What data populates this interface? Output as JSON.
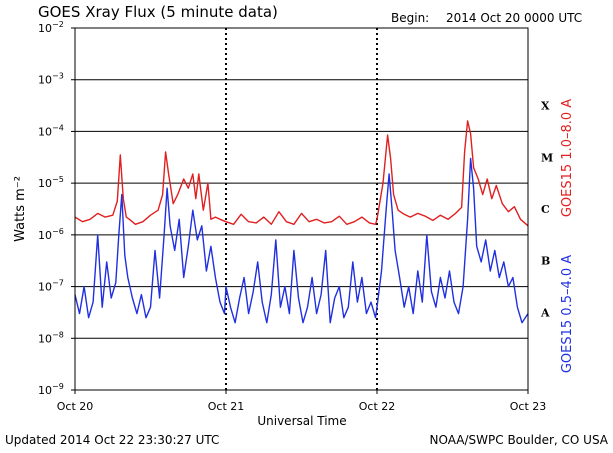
{
  "header": {
    "title": "GOES Xray Flux (5 minute data)",
    "begin_label": "Begin:",
    "begin_value": "2014 Oct 20 0000 UTC"
  },
  "footer": {
    "updated": "Updated 2014 Oct 22 23:30:27 UTC",
    "source": "NOAA/SWPC Boulder, CO USA"
  },
  "colors": {
    "long_channel": "#e02020",
    "short_channel": "#2030e0",
    "grid": "#000000"
  },
  "chart_data": {
    "type": "line",
    "title": "GOES Xray Flux (5 minute data)",
    "xlabel": "Universal Time",
    "ylabel": "Watts m⁻²",
    "yscale": "log",
    "ylim": [
      1e-09,
      0.01
    ],
    "xlim": [
      0,
      3
    ],
    "x_unit": "days since 2014 Oct 20 0000 UTC",
    "x_ticks": [
      {
        "x": 0,
        "label": "Oct 20"
      },
      {
        "x": 1,
        "label": "Oct 21"
      },
      {
        "x": 2,
        "label": "Oct 22"
      },
      {
        "x": 3,
        "label": "Oct 23"
      }
    ],
    "y_ticks": [
      {
        "base": "10",
        "exp": "−2",
        "value": 0.01
      },
      {
        "base": "10",
        "exp": "−3",
        "value": 0.001
      },
      {
        "base": "10",
        "exp": "−4",
        "value": 0.0001
      },
      {
        "base": "10",
        "exp": "−5",
        "value": 1e-05
      },
      {
        "base": "10",
        "exp": "−6",
        "value": 1e-06
      },
      {
        "base": "10",
        "exp": "−7",
        "value": 1e-07
      },
      {
        "base": "10",
        "exp": "−8",
        "value": 1e-08
      },
      {
        "base": "10",
        "exp": "−9",
        "value": 1e-09
      }
    ],
    "flare_classes": [
      {
        "label": "X",
        "value": 0.0001
      },
      {
        "label": "M",
        "value": 1e-05
      },
      {
        "label": "C",
        "value": 1e-06
      },
      {
        "label": "B",
        "value": 1e-07
      },
      {
        "label": "A",
        "value": 1e-08
      }
    ],
    "horizontal_grid": true,
    "day_dividers": [
      1,
      2
    ],
    "series": [
      {
        "name": "GOES15 1.0–8.0 A",
        "color": "#e02020",
        "x": [
          0.0,
          0.05,
          0.1,
          0.15,
          0.2,
          0.25,
          0.28,
          0.3,
          0.32,
          0.34,
          0.36,
          0.4,
          0.45,
          0.5,
          0.55,
          0.58,
          0.6,
          0.62,
          0.65,
          0.68,
          0.72,
          0.75,
          0.78,
          0.8,
          0.82,
          0.85,
          0.88,
          0.9,
          0.93,
          0.96,
          1.0,
          1.05,
          1.1,
          1.15,
          1.2,
          1.25,
          1.3,
          1.35,
          1.4,
          1.45,
          1.5,
          1.55,
          1.6,
          1.65,
          1.7,
          1.75,
          1.8,
          1.85,
          1.9,
          1.95,
          1.99,
          2.0,
          2.04,
          2.07,
          2.09,
          2.11,
          2.14,
          2.18,
          2.22,
          2.27,
          2.32,
          2.37,
          2.42,
          2.47,
          2.52,
          2.56,
          2.58,
          2.6,
          2.62,
          2.64,
          2.67,
          2.7,
          2.73,
          2.76,
          2.79,
          2.83,
          2.87,
          2.91,
          2.95,
          3.0
        ],
        "values": [
          2.2e-06,
          1.8e-06,
          2e-06,
          2.6e-06,
          2.2e-06,
          2.4e-06,
          4.5e-06,
          3.5e-05,
          5e-06,
          2.2e-06,
          2e-06,
          1.6e-06,
          1.8e-06,
          2.4e-06,
          3e-06,
          6e-06,
          4e-05,
          1.5e-05,
          4e-06,
          6e-06,
          1.2e-05,
          8e-06,
          1.5e-05,
          5e-06,
          1.5e-05,
          3e-06,
          1e-05,
          2e-06,
          2.2e-06,
          2e-06,
          1.8e-06,
          1.6e-06,
          2.5e-06,
          1.8e-06,
          1.7e-06,
          2.2e-06,
          1.6e-06,
          2.8e-06,
          1.8e-06,
          1.6e-06,
          2.6e-06,
          1.8e-06,
          2e-06,
          1.7e-06,
          1.8e-06,
          2.3e-06,
          1.6e-06,
          1.8e-06,
          2.2e-06,
          1.7e-06,
          1.6e-06,
          2e-06,
          1e-05,
          8.5e-05,
          3e-05,
          6e-06,
          3e-06,
          2.5e-06,
          2.2e-06,
          2.6e-06,
          2.3e-06,
          1.9e-06,
          2.4e-06,
          2e-06,
          2.6e-06,
          3.4e-06,
          4e-05,
          0.00016,
          9e-05,
          2e-05,
          1.2e-05,
          6e-06,
          1.2e-05,
          5e-06,
          9e-06,
          4e-06,
          2.8e-06,
          3.5e-06,
          2e-06,
          1.5e-06
        ]
      },
      {
        "name": "GOES15 0.5–4.0 A",
        "color": "#2030e0",
        "x": [
          0.0,
          0.03,
          0.06,
          0.09,
          0.12,
          0.15,
          0.18,
          0.21,
          0.24,
          0.27,
          0.29,
          0.31,
          0.33,
          0.35,
          0.38,
          0.41,
          0.44,
          0.47,
          0.5,
          0.53,
          0.56,
          0.59,
          0.61,
          0.63,
          0.66,
          0.69,
          0.72,
          0.75,
          0.78,
          0.81,
          0.84,
          0.87,
          0.9,
          0.93,
          0.96,
          0.99,
          1.0,
          1.03,
          1.06,
          1.09,
          1.12,
          1.15,
          1.18,
          1.21,
          1.24,
          1.27,
          1.3,
          1.33,
          1.36,
          1.39,
          1.42,
          1.45,
          1.48,
          1.51,
          1.54,
          1.57,
          1.6,
          1.63,
          1.66,
          1.69,
          1.72,
          1.75,
          1.78,
          1.81,
          1.84,
          1.87,
          1.9,
          1.93,
          1.96,
          1.99,
          2.0,
          2.03,
          2.06,
          2.08,
          2.1,
          2.12,
          2.15,
          2.18,
          2.21,
          2.24,
          2.27,
          2.3,
          2.33,
          2.36,
          2.39,
          2.42,
          2.45,
          2.48,
          2.51,
          2.54,
          2.57,
          2.6,
          2.62,
          2.64,
          2.66,
          2.69,
          2.72,
          2.75,
          2.78,
          2.81,
          2.84,
          2.87,
          2.9,
          2.93,
          2.96,
          3.0
        ],
        "values": [
          7e-08,
          3e-08,
          1e-07,
          2.5e-08,
          5e-08,
          1e-06,
          4e-08,
          3e-07,
          6e-08,
          1.2e-07,
          1e-06,
          6e-06,
          4e-07,
          1.5e-07,
          6e-08,
          3e-08,
          7e-08,
          2.5e-08,
          4e-08,
          5e-07,
          6e-08,
          1e-06,
          8e-06,
          1.5e-06,
          5e-07,
          2e-06,
          1.5e-07,
          6e-07,
          3e-06,
          8e-07,
          1.5e-06,
          2e-07,
          6e-07,
          1.5e-07,
          5e-08,
          3e-08,
          1e-07,
          4e-08,
          2e-08,
          6e-08,
          1.5e-07,
          3e-08,
          8e-08,
          3e-07,
          5e-08,
          2e-08,
          7e-08,
          8e-07,
          4e-08,
          1e-07,
          3e-08,
          5e-07,
          6e-08,
          2e-08,
          4e-08,
          1.5e-07,
          3e-08,
          7e-08,
          5e-07,
          2e-08,
          6e-08,
          1e-07,
          2.5e-08,
          4e-08,
          3e-07,
          5e-08,
          1.5e-07,
          3e-08,
          5e-08,
          2.5e-08,
          4e-08,
          2e-07,
          3e-06,
          1.5e-05,
          3e-06,
          5e-07,
          1.5e-07,
          4e-08,
          1e-07,
          3e-08,
          2e-07,
          5e-08,
          1e-06,
          8e-08,
          4e-08,
          1.5e-07,
          6e-08,
          2e-07,
          5e-08,
          3e-08,
          1e-07,
          2e-06,
          3e-05,
          8e-06,
          6e-07,
          3e-07,
          8e-07,
          2e-07,
          5e-07,
          1.5e-07,
          3e-07,
          1e-07,
          1.5e-07,
          4e-08,
          2e-08,
          3e-08
        ]
      }
    ]
  }
}
